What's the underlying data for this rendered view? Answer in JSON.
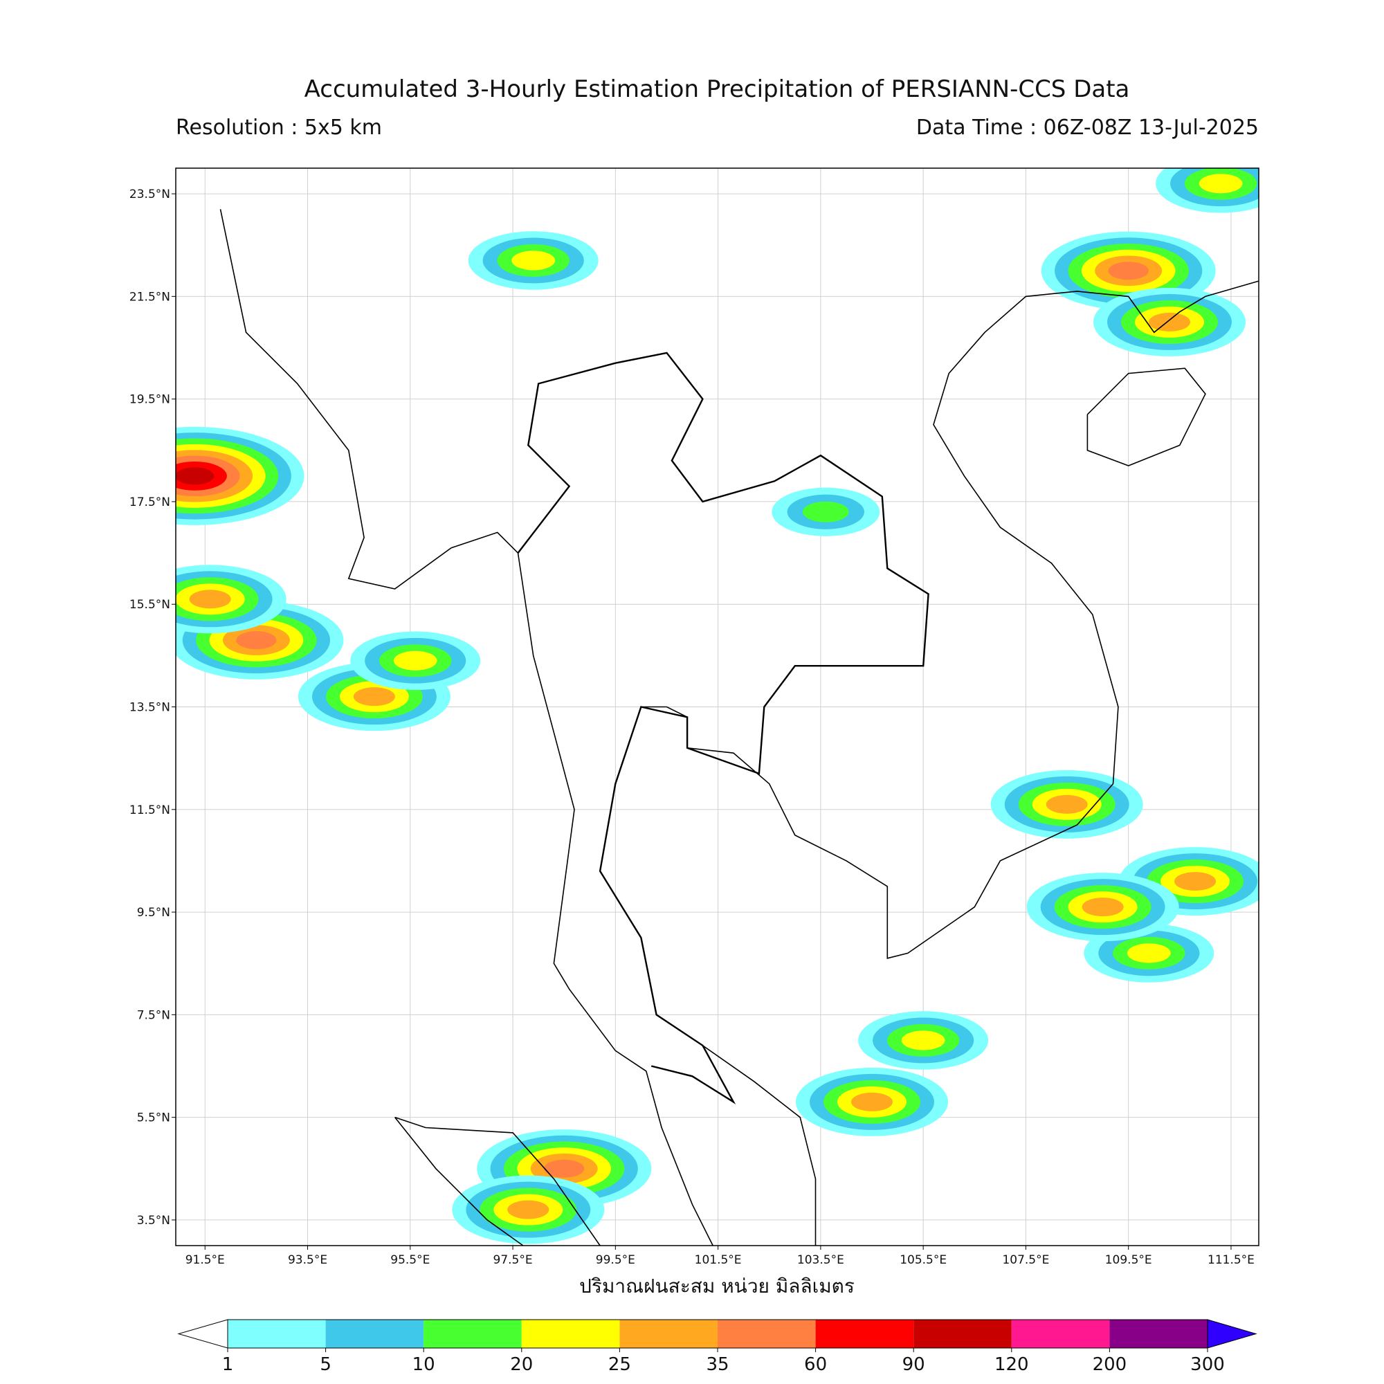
{
  "header": {
    "title": "Accumulated 3-Hourly Estimation Precipitation of PERSIANN-CCS Data",
    "resolution": "Resolution : 5x5 km",
    "data_time": "Data Time : 06Z-08Z 13-Jul-2025"
  },
  "map": {
    "lon_range": [
      90.93,
      112.04
    ],
    "lat_range": [
      3.0,
      24.0
    ],
    "lon_ticks": [
      {
        "value": 91.5,
        "label": "91.5°E"
      },
      {
        "value": 93.5,
        "label": "93.5°E"
      },
      {
        "value": 95.5,
        "label": "95.5°E"
      },
      {
        "value": 97.5,
        "label": "97.5°E"
      },
      {
        "value": 99.5,
        "label": "99.5°E"
      },
      {
        "value": 101.5,
        "label": "101.5°E"
      },
      {
        "value": 103.5,
        "label": "103.5°E"
      },
      {
        "value": 105.5,
        "label": "105.5°E"
      },
      {
        "value": 107.5,
        "label": "107.5°E"
      },
      {
        "value": 109.5,
        "label": "109.5°E"
      },
      {
        "value": 111.5,
        "label": "111.5°E"
      }
    ],
    "lat_ticks": [
      {
        "value": 23.5,
        "label": "23.5°N"
      },
      {
        "value": 21.5,
        "label": "21.5°N"
      },
      {
        "value": 19.5,
        "label": "19.5°N"
      },
      {
        "value": 17.5,
        "label": "17.5°N"
      },
      {
        "value": 15.5,
        "label": "15.5°N"
      },
      {
        "value": 13.5,
        "label": "13.5°N"
      },
      {
        "value": 11.5,
        "label": "11.5°N"
      },
      {
        "value": 9.5,
        "label": "9.5°N"
      },
      {
        "value": 7.5,
        "label": "7.5°N"
      },
      {
        "value": 5.5,
        "label": "5.5°N"
      },
      {
        "value": 3.5,
        "label": "3.5°N"
      }
    ],
    "x_label": "ปริมาณฝนสะสม หน่วย มิลลิเมตร",
    "rain_cells": [
      {
        "lon": 91.3,
        "lat": 18.0,
        "value": 90
      },
      {
        "lon": 92.5,
        "lat": 14.8,
        "value": 35
      },
      {
        "lon": 91.6,
        "lat": 15.6,
        "value": 25
      },
      {
        "lon": 94.8,
        "lat": 13.7,
        "value": 25
      },
      {
        "lon": 95.6,
        "lat": 14.4,
        "value": 20
      },
      {
        "lon": 98.5,
        "lat": 4.5,
        "value": 35
      },
      {
        "lon": 97.8,
        "lat": 3.7,
        "value": 25
      },
      {
        "lon": 104.5,
        "lat": 5.8,
        "value": 25
      },
      {
        "lon": 105.5,
        "lat": 7.0,
        "value": 20
      },
      {
        "lon": 109.9,
        "lat": 8.7,
        "value": 20
      },
      {
        "lon": 110.8,
        "lat": 10.1,
        "value": 25
      },
      {
        "lon": 109.0,
        "lat": 9.6,
        "value": 25
      },
      {
        "lon": 109.5,
        "lat": 22.0,
        "value": 35
      },
      {
        "lon": 110.3,
        "lat": 21.0,
        "value": 25
      },
      {
        "lon": 111.3,
        "lat": 23.7,
        "value": 20
      },
      {
        "lon": 103.6,
        "lat": 17.3,
        "value": 10
      },
      {
        "lon": 97.9,
        "lat": 22.2,
        "value": 20
      },
      {
        "lon": 108.3,
        "lat": 11.6,
        "value": 25
      }
    ]
  },
  "colorbar": {
    "levels": [
      1,
      5,
      10,
      20,
      25,
      35,
      60,
      90,
      120,
      200,
      300
    ],
    "colors": [
      "#80ffff",
      "#40c8ea",
      "#48ff30",
      "#ffff00",
      "#ffa820",
      "#ff8040",
      "#ff0000",
      "#c80000",
      "#ff1890",
      "#880088"
    ],
    "under_color": "#ffffff",
    "over_color": "#3000ff"
  }
}
